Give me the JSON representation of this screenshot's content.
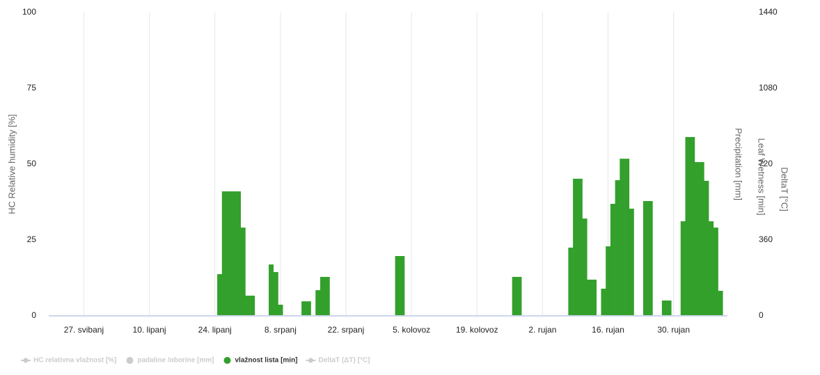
{
  "chart_data": {
    "type": "bar",
    "ylabel": "HC Relative humidity [%]",
    "y2labels": [
      "Precipitation [mm]",
      "Leaf Wetness [min]",
      "DeltaT [°C]"
    ],
    "ylim": [
      0,
      100
    ],
    "yticks": [
      0,
      25,
      50,
      75,
      100
    ],
    "y2lim": [
      0,
      1440
    ],
    "y2ticks": [
      0,
      360,
      720,
      1080,
      1440
    ],
    "xgrid": true,
    "categories": [
      null,
      null,
      null,
      null,
      null,
      null,
      null,
      "27. svibanj",
      null,
      null,
      null,
      null,
      null,
      null,
      null,
      null,
      null,
      null,
      null,
      null,
      null,
      "10. lipanj",
      null,
      null,
      null,
      null,
      null,
      null,
      null,
      null,
      null,
      null,
      null,
      null,
      null,
      "24. lipanj",
      null,
      null,
      null,
      null,
      null,
      null,
      null,
      null,
      null,
      null,
      null,
      null,
      null,
      "8. srpanj",
      null,
      null,
      null,
      null,
      null,
      null,
      null,
      null,
      null,
      null,
      null,
      null,
      null,
      "22. srpanj",
      null,
      null,
      null,
      null,
      null,
      null,
      null,
      null,
      null,
      null,
      null,
      null,
      null,
      "5. kolovoz",
      null,
      null,
      null,
      null,
      null,
      null,
      null,
      null,
      null,
      null,
      null,
      null,
      null,
      "19. kolovoz",
      null,
      null,
      null,
      null,
      null,
      null,
      null,
      null,
      null,
      null,
      null,
      null,
      null,
      "2. rujan",
      null,
      null,
      null,
      null,
      null,
      null,
      null,
      null,
      null,
      null,
      null,
      null,
      null,
      "16. rujan",
      null,
      null,
      null,
      null,
      null,
      null,
      null,
      null,
      null,
      null,
      null,
      null,
      null,
      "30. rujan",
      null,
      null,
      null,
      null,
      null,
      null,
      null,
      null,
      null,
      null,
      null
    ],
    "series": [
      {
        "name": "vlažnost lista [min]",
        "color": "#33a02c",
        "axis": "y2",
        "values": [
          0,
          0,
          0,
          0,
          0,
          0,
          0,
          0,
          0,
          0,
          0,
          0,
          0,
          0,
          0,
          0,
          0,
          0,
          0,
          0,
          0,
          0,
          0,
          0,
          0,
          0,
          0,
          0,
          0,
          0,
          0,
          0,
          0,
          0,
          0,
          0,
          198,
          591,
          591,
          591,
          591,
          419,
          96,
          96,
          0,
          0,
          0,
          244,
          208,
          53,
          0,
          0,
          0,
          0,
          69,
          69,
          0,
          122,
          185,
          185,
          0,
          0,
          0,
          0,
          0,
          0,
          0,
          0,
          0,
          0,
          0,
          0,
          0,
          0,
          284,
          284,
          0,
          0,
          0,
          0,
          0,
          0,
          0,
          0,
          0,
          0,
          0,
          0,
          0,
          0,
          0,
          0,
          0,
          0,
          0,
          0,
          0,
          0,
          0,
          185,
          185,
          0,
          0,
          0,
          0,
          0,
          0,
          0,
          0,
          0,
          0,
          324,
          651,
          651,
          462,
          172,
          172,
          0,
          129,
          330,
          532,
          644,
          746,
          746,
          509,
          0,
          0,
          545,
          545,
          0,
          0,
          73,
          73,
          0,
          0,
          449,
          849,
          849,
          730,
          730,
          641,
          449,
          419,
          119,
          0
        ]
      }
    ],
    "hidden_series": [
      {
        "name": "HC relativna vlažnost [%]",
        "symbol": "line"
      },
      {
        "name": "padaline /oborine [mm]",
        "symbol": "circle"
      },
      {
        "name": "DeltaT (ΔT) [°C]",
        "symbol": "line"
      }
    ]
  }
}
